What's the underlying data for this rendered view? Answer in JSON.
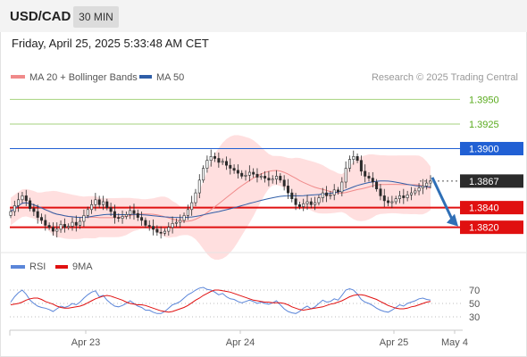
{
  "header": {
    "symbol": "USD/CAD",
    "timeframe": "30 MIN",
    "datetime": "Friday, April 25, 2025 5:33:48 AM CET"
  },
  "legend": {
    "ma20": "MA 20 + Bollinger Bands",
    "ma50": "MA 50",
    "credit": "Research © 2025 Trading Central"
  },
  "colors": {
    "resistance_green": "#5aab1e",
    "pivot_blue": "#2160d4",
    "support_red": "#e01010",
    "bollinger_fill": "#ffd9d9",
    "ma20": "#f08a8a",
    "ma50": "#2f5ea8",
    "candle": "#2b2b2b",
    "rsi": "#5b86d9",
    "rsi_ma": "#e01010"
  },
  "chart_data": [
    {
      "type": "candlestick",
      "ylim": [
        1.3797,
        1.3964
      ],
      "levels": [
        {
          "label": "1.3950",
          "value": 1.395,
          "kind": "resistance"
        },
        {
          "label": "1.3925",
          "value": 1.3925,
          "kind": "resistance"
        },
        {
          "label": "1.3900",
          "value": 1.39,
          "kind": "pivot"
        },
        {
          "label": "1.3867",
          "value": 1.3867,
          "kind": "last"
        },
        {
          "label": "1.3840",
          "value": 1.384,
          "kind": "support"
        },
        {
          "label": "1.3820",
          "value": 1.382,
          "kind": "support"
        }
      ],
      "x_tick_labels": [
        "Apr 23",
        "Apr 24",
        "Apr 25",
        "May 4"
      ],
      "close": [
        1.3836,
        1.3842,
        1.3848,
        1.3852,
        1.3847,
        1.3839,
        1.3836,
        1.383,
        1.3827,
        1.3822,
        1.382,
        1.3816,
        1.3818,
        1.3823,
        1.382,
        1.3821,
        1.3825,
        1.3822,
        1.3826,
        1.3832,
        1.3838,
        1.3843,
        1.3848,
        1.3843,
        1.3846,
        1.384,
        1.3836,
        1.383,
        1.3829,
        1.3831,
        1.3833,
        1.3837,
        1.3834,
        1.383,
        1.3827,
        1.3822,
        1.3821,
        1.3818,
        1.3815,
        1.3814,
        1.3816,
        1.382,
        1.3824,
        1.3825,
        1.3827,
        1.3832,
        1.3838,
        1.3845,
        1.3855,
        1.3868,
        1.388,
        1.3888,
        1.3892,
        1.389,
        1.3886,
        1.3887,
        1.3883,
        1.388,
        1.3878,
        1.3875,
        1.3872,
        1.3873,
        1.3876,
        1.3874,
        1.3871,
        1.3872,
        1.387,
        1.3868,
        1.3869,
        1.3872,
        1.3868,
        1.3862,
        1.3855,
        1.3849,
        1.3843,
        1.3841,
        1.3844,
        1.3846,
        1.3843,
        1.3845,
        1.385,
        1.3855,
        1.3852,
        1.3853,
        1.3858,
        1.3856,
        1.3866,
        1.388,
        1.3889,
        1.3892,
        1.3888,
        1.3877,
        1.3872,
        1.387,
        1.3866,
        1.3859,
        1.3852,
        1.3847,
        1.3845,
        1.3846,
        1.3849,
        1.3852,
        1.385,
        1.3853,
        1.3855,
        1.3857,
        1.386,
        1.3862,
        1.3865,
        1.3867
      ],
      "projection": {
        "from": 1.3867,
        "to": 1.382
      }
    },
    {
      "type": "line",
      "series": [
        {
          "name": "RSI",
          "values": [
            52,
            60,
            66,
            70,
            64,
            55,
            50,
            46,
            44,
            43,
            41,
            38,
            42,
            46,
            44,
            46,
            50,
            48,
            52,
            58,
            63,
            67,
            69,
            60,
            62,
            55,
            50,
            46,
            45,
            47,
            50,
            54,
            50,
            46,
            44,
            40,
            40,
            37,
            35,
            35,
            38,
            43,
            48,
            50,
            53,
            58,
            63,
            66,
            70,
            73,
            74,
            71,
            70,
            67,
            63,
            65,
            60,
            57,
            56,
            53,
            51,
            53,
            55,
            53,
            50,
            52,
            50,
            49,
            51,
            54,
            48,
            42,
            38,
            36,
            35,
            38,
            43,
            46,
            42,
            45,
            50,
            55,
            52,
            53,
            57,
            55,
            62,
            70,
            72,
            70,
            64,
            56,
            52,
            50,
            47,
            43,
            40,
            38,
            37,
            40,
            44,
            48,
            46,
            50,
            52,
            54,
            57,
            58,
            56,
            55
          ]
        },
        {
          "name": "9MA",
          "values": [
            48,
            49,
            50,
            52,
            55,
            57,
            58,
            58,
            56,
            53,
            51,
            49,
            46,
            44,
            43,
            43,
            44,
            45,
            46,
            48,
            51,
            54,
            57,
            59,
            61,
            62,
            61,
            59,
            57,
            55,
            52,
            50,
            49,
            48,
            48,
            47,
            45,
            43,
            41,
            39,
            38,
            37,
            38,
            40,
            42,
            44,
            47,
            51,
            55,
            58,
            62,
            65,
            68,
            70,
            70,
            69,
            68,
            67,
            65,
            63,
            61,
            59,
            57,
            55,
            54,
            53,
            52,
            52,
            51,
            51,
            51,
            50,
            48,
            45,
            43,
            41,
            40,
            41,
            42,
            43,
            44,
            45,
            47,
            49,
            50,
            52,
            54,
            57,
            60,
            62,
            63,
            63,
            62,
            60,
            58,
            56,
            53,
            50,
            47,
            45,
            43,
            42,
            42,
            43,
            45,
            46,
            48,
            50,
            52,
            53
          ]
        }
      ],
      "y_tick_labels": [
        "70",
        "50",
        "30"
      ],
      "ylim": [
        18,
        82
      ]
    }
  ]
}
